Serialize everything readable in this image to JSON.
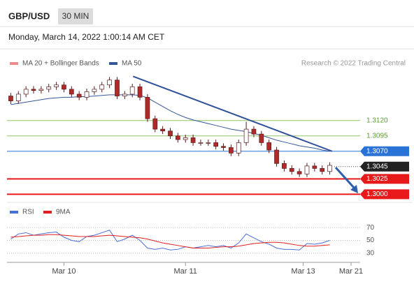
{
  "chart_data": [
    {
      "type": "candlestick",
      "title": "GBP/USD",
      "timeframe": "30 MIN",
      "subtitle": "Monday, March 14, 2022 1:00:14 AM CET",
      "source": "Research © 2022 Trading Central",
      "x": [
        0,
        1,
        2,
        3,
        4,
        5,
        6,
        7,
        8,
        9,
        10,
        11,
        12,
        13,
        14,
        15,
        16,
        17,
        18,
        19,
        20,
        21,
        22,
        23,
        24,
        25,
        26,
        27,
        28,
        29,
        30,
        31,
        32,
        33,
        34,
        35,
        36,
        37,
        38,
        39,
        40,
        41,
        42
      ],
      "open": [
        1.316,
        1.3152,
        1.3163,
        1.3171,
        1.3169,
        1.3171,
        1.3175,
        1.3178,
        1.3171,
        1.3163,
        1.3158,
        1.3167,
        1.3171,
        1.3178,
        1.3186,
        1.316,
        1.3163,
        1.3175,
        1.3158,
        1.3123,
        1.3106,
        1.3103,
        1.3095,
        1.3089,
        1.3092,
        1.3084,
        1.3084,
        1.3084,
        1.3078,
        1.3076,
        1.3067,
        1.3084,
        1.3106,
        1.3098,
        1.3084,
        1.3072,
        1.305,
        1.3042,
        1.3037,
        1.3033,
        1.3046,
        1.3042,
        1.3037
      ],
      "high": [
        1.3165,
        1.3168,
        1.3176,
        1.3176,
        1.3176,
        1.318,
        1.3183,
        1.3183,
        1.3176,
        1.3168,
        1.3172,
        1.3176,
        1.3183,
        1.3191,
        1.3191,
        1.3168,
        1.318,
        1.318,
        1.3163,
        1.3128,
        1.3111,
        1.3108,
        1.31,
        1.3097,
        1.3097,
        1.3089,
        1.3089,
        1.3089,
        1.3083,
        1.3081,
        1.3089,
        1.3118,
        1.3111,
        1.3103,
        1.3089,
        1.3077,
        1.3055,
        1.3047,
        1.3042,
        1.3051,
        1.3051,
        1.3047,
        1.3052
      ],
      "low": [
        1.3147,
        1.3147,
        1.3158,
        1.3164,
        1.3164,
        1.3166,
        1.317,
        1.3166,
        1.3158,
        1.3153,
        1.3153,
        1.3162,
        1.3166,
        1.3173,
        1.3155,
        1.3155,
        1.3158,
        1.3153,
        1.3118,
        1.3101,
        1.3098,
        1.309,
        1.3084,
        1.3084,
        1.3079,
        1.3079,
        1.3079,
        1.3073,
        1.3071,
        1.3062,
        1.3062,
        1.3079,
        1.3093,
        1.3079,
        1.3067,
        1.3045,
        1.3037,
        1.3032,
        1.3028,
        1.3028,
        1.3037,
        1.3032,
        1.3032
      ],
      "close": [
        1.3152,
        1.3163,
        1.3171,
        1.3169,
        1.3171,
        1.3175,
        1.3178,
        1.3171,
        1.3163,
        1.3158,
        1.3167,
        1.3171,
        1.3178,
        1.3186,
        1.316,
        1.3163,
        1.3175,
        1.3158,
        1.3123,
        1.3106,
        1.3103,
        1.3095,
        1.3089,
        1.3092,
        1.3084,
        1.3084,
        1.3084,
        1.3078,
        1.3076,
        1.3067,
        1.3084,
        1.3106,
        1.3098,
        1.3084,
        1.3072,
        1.305,
        1.3042,
        1.3037,
        1.3033,
        1.3046,
        1.3042,
        1.3037,
        1.3047
      ],
      "up_color": "#ffffff",
      "down_color": "#b02a2a",
      "outline_color": "#5c1a1a",
      "xlim": [
        -0.5,
        46
      ],
      "ylim": [
        1.2989,
        1.3205
      ],
      "overlays": [
        {
          "name": "MA 20 + Bollinger Bands",
          "color": "#f08a8a"
        },
        {
          "name": "MA 50",
          "color": "#34589a",
          "values": [
            1.3146,
            1.3148,
            1.315,
            1.3152,
            1.3154,
            1.3156,
            1.3157,
            1.3158,
            1.3158,
            1.3159,
            1.3159,
            1.316,
            1.3161,
            1.3162,
            1.3162,
            1.3162,
            1.3162,
            1.3161,
            1.3157,
            1.315,
            1.3143,
            1.3136,
            1.313,
            1.3125,
            1.3121,
            1.3118,
            1.3115,
            1.3112,
            1.3109,
            1.3106,
            1.3104,
            1.3102,
            1.3099,
            1.3096,
            1.3092,
            1.3088,
            1.3085,
            1.3082,
            1.3079,
            1.3077,
            1.3075,
            1.3072,
            1.307
          ]
        }
      ],
      "levels": [
        {
          "value": 1.312,
          "label": "1.3120",
          "color": "#8fc46a",
          "style": "text"
        },
        {
          "value": 1.3095,
          "label": "1.3095",
          "color": "#8fc46a",
          "style": "text"
        },
        {
          "value": 1.307,
          "label": "1.3070",
          "color": "#2a73d6",
          "style": "box"
        },
        {
          "value": 1.3045,
          "label": "1.3045",
          "color": "#222222",
          "style": "current"
        },
        {
          "value": 1.3025,
          "label": "1.3025",
          "color": "#e8191a",
          "style": "box"
        },
        {
          "value": 1.3,
          "label": "1.3000",
          "color": "#e8191a",
          "style": "box"
        }
      ],
      "trendline": {
        "x": [
          16.1,
          42.3
        ],
        "y": [
          1.3192,
          1.307
        ],
        "color": "#2f4f9a"
      }
    },
    {
      "type": "line",
      "x": [
        0,
        1,
        2,
        3,
        4,
        5,
        6,
        7,
        8,
        9,
        10,
        11,
        12,
        13,
        14,
        15,
        16,
        17,
        18,
        19,
        20,
        21,
        22,
        23,
        24,
        25,
        26,
        27,
        28,
        29,
        30,
        31,
        32,
        33,
        34,
        35,
        36,
        37,
        38,
        39,
        40,
        41,
        42
      ],
      "series": [
        {
          "name": "RSI",
          "color": "#4a6fdc",
          "values": [
            52,
            60,
            62,
            58,
            60,
            62,
            63,
            55,
            50,
            48,
            56,
            58,
            62,
            66,
            48,
            52,
            58,
            50,
            38,
            36,
            38,
            35,
            36,
            40,
            38,
            40,
            42,
            40,
            42,
            38,
            46,
            60,
            54,
            48,
            44,
            38,
            36,
            36,
            35,
            45,
            44,
            46,
            50
          ]
        },
        {
          "name": "9MA",
          "color": "#e02020",
          "values": [
            55,
            56,
            57,
            58,
            58,
            59,
            59,
            58,
            57,
            56,
            56,
            56,
            57,
            58,
            57,
            56,
            55,
            54,
            52,
            49,
            46,
            44,
            42,
            40,
            38,
            38,
            38,
            39,
            40,
            40,
            41,
            43,
            45,
            46,
            47,
            47,
            46,
            44,
            42,
            41,
            41,
            42,
            43
          ]
        }
      ],
      "xlim": [
        -0.5,
        46
      ],
      "ylim": [
        20,
        93
      ],
      "yticks": [
        70,
        50,
        30
      ],
      "grid": true,
      "xticks": [
        {
          "value": 7,
          "label": "Mar 10"
        },
        {
          "value": 23,
          "label": "Mar 11"
        },
        {
          "value": 38.5,
          "label": "Mar 13"
        },
        {
          "value": 44.8,
          "label": "Mar 21"
        }
      ]
    }
  ]
}
